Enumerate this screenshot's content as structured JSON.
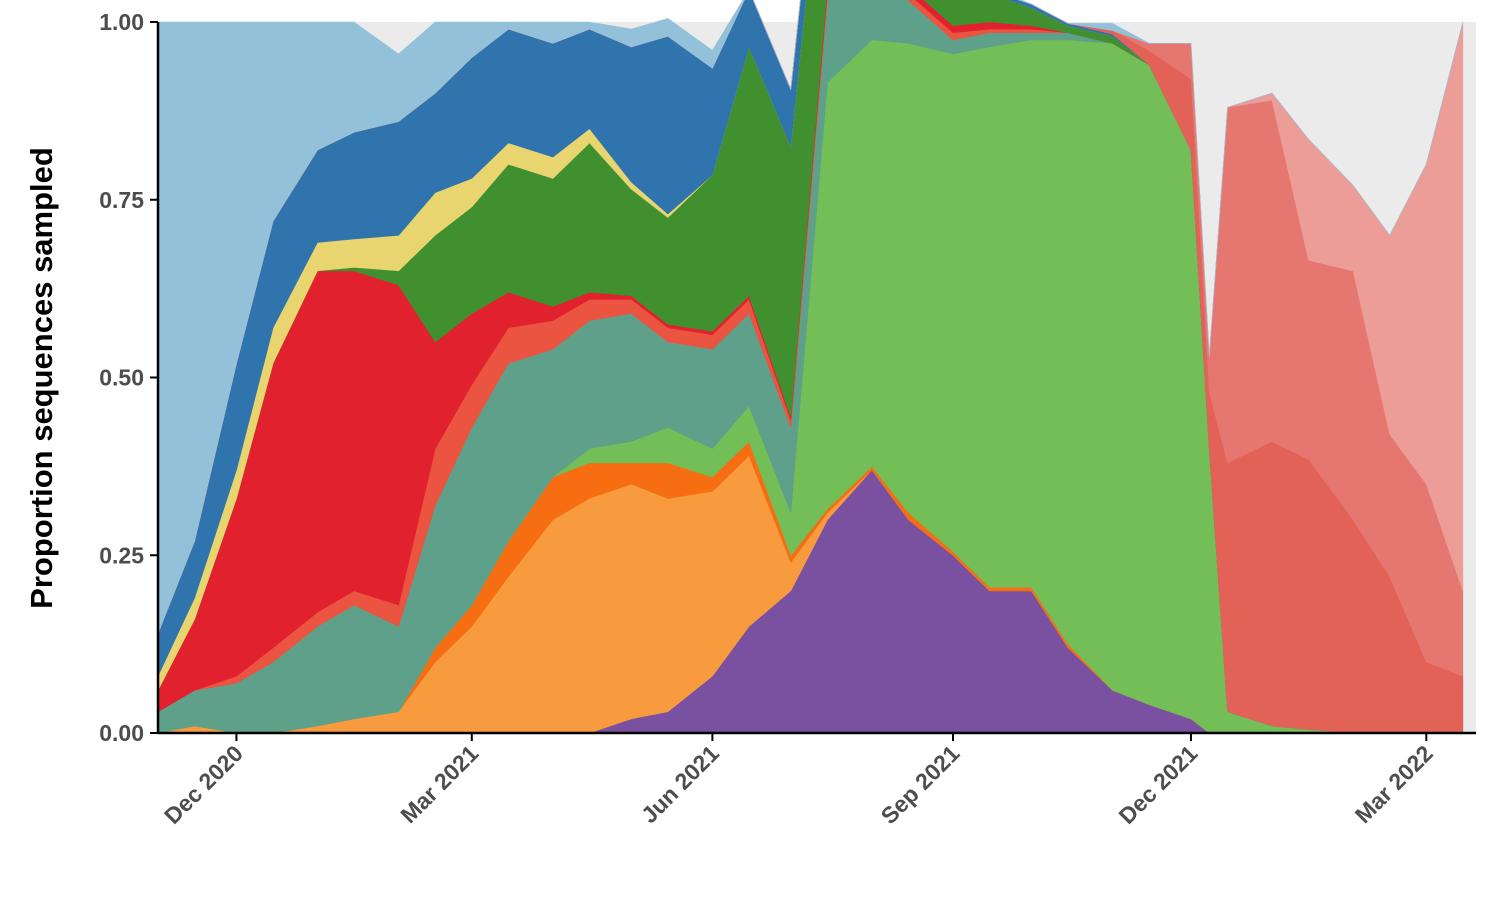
{
  "chart_data": {
    "type": "area",
    "stacked": true,
    "normalized": true,
    "title": "",
    "xlabel": "",
    "ylabel": "Proportion sequences sampled",
    "xlim": [
      "2020-11-01",
      "2022-03-20"
    ],
    "ylim": [
      0,
      1
    ],
    "grid": false,
    "legend": "none",
    "x_ticks": [
      {
        "date": "2020-12-01",
        "label": "Dec 2020"
      },
      {
        "date": "2021-03-01",
        "label": "Mar 2021"
      },
      {
        "date": "2021-06-01",
        "label": "Jun 2021"
      },
      {
        "date": "2021-09-01",
        "label": "Sep 2021"
      },
      {
        "date": "2021-12-01",
        "label": "Dec 2021"
      },
      {
        "date": "2022-03-01",
        "label": "Mar 2022"
      }
    ],
    "y_ticks": [
      {
        "value": 0,
        "label": "0.00"
      },
      {
        "value": 0.25,
        "label": "0.25"
      },
      {
        "value": 0.5,
        "label": "0.50"
      },
      {
        "value": 0.75,
        "label": "0.75"
      },
      {
        "value": 1,
        "label": "1.00"
      }
    ],
    "x": [
      "2020-11-01",
      "2020-11-15",
      "2020-12-01",
      "2020-12-15",
      "2021-01-01",
      "2021-01-15",
      "2021-02-01",
      "2021-02-15",
      "2021-03-01",
      "2021-03-15",
      "2021-04-01",
      "2021-04-15",
      "2021-05-01",
      "2021-05-15",
      "2021-06-01",
      "2021-06-15",
      "2021-07-01",
      "2021-07-15",
      "2021-08-01",
      "2021-08-15",
      "2021-09-01",
      "2021-09-15",
      "2021-10-01",
      "2021-10-15",
      "2021-11-01",
      "2021-11-15",
      "2021-12-01",
      "2021-12-08",
      "2021-12-15",
      "2022-01-01",
      "2022-01-15",
      "2022-02-01",
      "2022-02-15",
      "2022-03-01",
      "2022-03-15"
    ],
    "series": [
      {
        "color": "#7a51a0",
        "values": [
          0,
          0,
          0,
          0,
          0,
          0,
          0,
          0,
          0,
          0,
          0,
          0,
          0.02,
          0.03,
          0.08,
          0.15,
          0.2,
          0.3,
          0.37,
          0.3,
          0.25,
          0.2,
          0.2,
          0.12,
          0.06,
          0.04,
          0.02,
          0,
          0,
          0,
          0,
          0,
          0,
          0,
          0
        ]
      },
      {
        "color": "#f89b3f",
        "values": [
          0,
          0.01,
          0,
          0,
          0.01,
          0.02,
          0.03,
          0.1,
          0.15,
          0.22,
          0.3,
          0.33,
          0.33,
          0.3,
          0.26,
          0.24,
          0.04,
          0.01,
          0,
          0,
          0,
          0,
          0,
          0,
          0,
          0,
          0,
          0,
          0,
          0,
          0,
          0,
          0,
          0,
          0
        ]
      },
      {
        "color": "#f76d12",
        "values": [
          0,
          0,
          0,
          0,
          0,
          0,
          0,
          0.02,
          0.03,
          0.05,
          0.06,
          0.05,
          0.03,
          0.05,
          0.02,
          0.02,
          0.01,
          0.005,
          0.005,
          0.01,
          0.005,
          0.005,
          0.005,
          0.005,
          0,
          0,
          0,
          0,
          0,
          0,
          0,
          0,
          0,
          0,
          0
        ]
      },
      {
        "color": "#73be57",
        "values": [
          0,
          0,
          0,
          0,
          0,
          0,
          0,
          0,
          0,
          0,
          0,
          0.02,
          0.03,
          0.05,
          0.04,
          0.05,
          0.06,
          0.6,
          0.6,
          0.66,
          0.7,
          0.76,
          0.77,
          0.85,
          0.91,
          0.9,
          0.8,
          0.4,
          0.03,
          0.01,
          0.005,
          0,
          0,
          0,
          0
        ]
      },
      {
        "color": "#5fa08a",
        "values": [
          0.03,
          0.05,
          0.07,
          0.1,
          0.14,
          0.16,
          0.12,
          0.2,
          0.25,
          0.25,
          0.18,
          0.18,
          0.18,
          0.12,
          0.14,
          0.13,
          0.12,
          0.12,
          0.1,
          0.06,
          0.02,
          0.02,
          0.01,
          0.01,
          0,
          0,
          0,
          0,
          0,
          0,
          0,
          0,
          0,
          0,
          0
        ]
      },
      {
        "color": "#ea5440",
        "values": [
          0,
          0,
          0.01,
          0.02,
          0.02,
          0.02,
          0.03,
          0.08,
          0.06,
          0.05,
          0.04,
          0.03,
          0.02,
          0.02,
          0.02,
          0.02,
          0.01,
          0.01,
          0.01,
          0.01,
          0.01,
          0.005,
          0.005,
          0,
          0,
          0,
          0,
          0,
          0,
          0,
          0,
          0,
          0,
          0,
          0
        ]
      },
      {
        "color": "#e2212f",
        "values": [
          0.03,
          0.1,
          0.25,
          0.4,
          0.48,
          0.45,
          0.45,
          0.15,
          0.1,
          0.05,
          0.02,
          0.01,
          0.005,
          0.005,
          0.005,
          0.005,
          0.005,
          0.01,
          0.01,
          0.01,
          0.01,
          0.01,
          0.005,
          0,
          0,
          0,
          0,
          0,
          0,
          0,
          0,
          0,
          0,
          0,
          0
        ]
      },
      {
        "color": "#419030",
        "values": [
          0,
          0,
          0,
          0,
          0,
          0.005,
          0.02,
          0.15,
          0.15,
          0.18,
          0.18,
          0.21,
          0.15,
          0.15,
          0.22,
          0.35,
          0.38,
          0.28,
          0.22,
          0.19,
          0.15,
          0.04,
          0.025,
          0.01,
          0.01,
          0,
          0,
          0,
          0,
          0,
          0,
          0,
          0,
          0,
          0
        ]
      },
      {
        "color": "#e9d56f",
        "values": [
          0.02,
          0.03,
          0.04,
          0.05,
          0.04,
          0.04,
          0.05,
          0.06,
          0.04,
          0.03,
          0.03,
          0.02,
          0.01,
          0.005,
          0,
          0,
          0,
          0,
          0,
          0,
          0,
          0,
          0,
          0,
          0,
          0,
          0,
          0,
          0,
          0,
          0,
          0,
          0,
          0,
          0
        ]
      },
      {
        "color": "#3074ad",
        "values": [
          0.06,
          0.08,
          0.15,
          0.15,
          0.13,
          0.15,
          0.16,
          0.14,
          0.17,
          0.16,
          0.16,
          0.14,
          0.19,
          0.25,
          0.15,
          0.08,
          0.08,
          0.05,
          0.04,
          0.05,
          0.02,
          0.005,
          0.005,
          0.003,
          0.003,
          0,
          0,
          0,
          0,
          0,
          0,
          0,
          0,
          0,
          0
        ]
      },
      {
        "color": "#e36258",
        "values": [
          0,
          0,
          0,
          0,
          0,
          0,
          0,
          0,
          0,
          0,
          0,
          0,
          0,
          0,
          0,
          0,
          0,
          0,
          0,
          0,
          0,
          0,
          0,
          0,
          0.005,
          0.02,
          0.1,
          0.08,
          0.35,
          0.4,
          0.38,
          0.3,
          0.22,
          0.1,
          0.08
        ]
      },
      {
        "color": "#e57770",
        "values": [
          0,
          0,
          0,
          0,
          0,
          0,
          0,
          0,
          0,
          0,
          0,
          0,
          0,
          0,
          0,
          0,
          0,
          0,
          0,
          0,
          0,
          0,
          0,
          0,
          0,
          0.01,
          0.05,
          0.05,
          0.5,
          0.48,
          0.28,
          0.35,
          0.2,
          0.25,
          0.12
        ]
      },
      {
        "color": "#ec9d97",
        "values": [
          0,
          0,
          0,
          0,
          0,
          0,
          0,
          0,
          0,
          0,
          0,
          0,
          0,
          0,
          0,
          0,
          0,
          0,
          0,
          0,
          0,
          0,
          0,
          0,
          0,
          0,
          0,
          0,
          0,
          0.01,
          0.17,
          0.12,
          0.28,
          0.45,
          0.8
        ]
      },
      {
        "color": "#93c1da",
        "values": [
          0.86,
          0.73,
          0.48,
          0.28,
          0.18,
          0.155,
          0.095,
          0.1,
          0.05,
          0.01,
          0.03,
          0.01,
          0.025,
          0.025,
          0.025,
          0,
          0,
          0,
          0.02,
          0.04,
          0.03,
          0.005,
          0,
          0,
          0.01,
          0,
          0,
          0,
          0,
          0,
          0,
          0,
          0,
          0,
          0
        ]
      }
    ]
  }
}
